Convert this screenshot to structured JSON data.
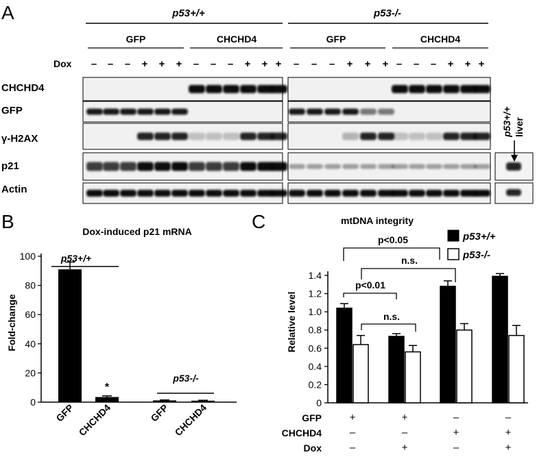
{
  "panelA": {
    "letter": "A",
    "groups": [
      {
        "genotype": "p53+/+",
        "conditions": [
          "GFP",
          "CHCHD4"
        ]
      },
      {
        "genotype": "p53-/-",
        "conditions": [
          "GFP",
          "CHCHD4"
        ]
      }
    ],
    "dox_label": "Dox",
    "dox_pattern": [
      "–",
      "–",
      "–",
      "+",
      "+",
      "+",
      "–",
      "–",
      "–",
      "+",
      "+",
      "+"
    ],
    "blot_labels": [
      "CHCHD4",
      "GFP",
      "γ-H2AX",
      "p21",
      "Actin"
    ],
    "liver_label": "p53+/+ liver",
    "liver_label_parts": [
      "p53+/+",
      "liver"
    ]
  },
  "panelB": {
    "letter": "B",
    "chart_data": {
      "type": "bar",
      "title": "Dox-induced p21 mRNA",
      "ylabel": "Fold-change",
      "ylim": [
        0,
        100
      ],
      "yticks": [
        0,
        20,
        40,
        60,
        80,
        100
      ],
      "categories": [
        "GFP",
        "CHCHD4",
        "GFP",
        "CHCHD4"
      ],
      "values": [
        91,
        3.5,
        1.2,
        1.0
      ],
      "errors": [
        5,
        0.8,
        0.3,
        0.3
      ],
      "groups": [
        {
          "label": "p53+/+",
          "categories": [
            0,
            1
          ]
        },
        {
          "label": "p53-/-",
          "categories": [
            2,
            3
          ]
        }
      ],
      "annotations": [
        {
          "text": "*",
          "category": 1
        }
      ],
      "grid": false
    }
  },
  "panelC": {
    "letter": "C",
    "chart_data": {
      "type": "bar",
      "title": "mtDNA integrity",
      "ylabel": "Relative level",
      "ylim": [
        0,
        1.4
      ],
      "yticks": [
        "0",
        "0.2",
        "0.4",
        "0.6",
        "0.8",
        "1.0",
        "1.2",
        "1.4"
      ],
      "categories": [
        "1",
        "2",
        "3",
        "4"
      ],
      "series": [
        {
          "name": "p53+/+",
          "color": "#000000",
          "values": [
            1.04,
            0.73,
            1.28,
            1.39
          ],
          "errors": [
            0.05,
            0.03,
            0.06,
            0.03
          ]
        },
        {
          "name": "p53-/-",
          "color": "#ffffff",
          "values": [
            0.64,
            0.56,
            0.8,
            0.74
          ],
          "errors": [
            0.1,
            0.07,
            0.07,
            0.11
          ]
        }
      ],
      "legend": "top-right",
      "factors": [
        {
          "label": "GFP",
          "values": [
            "+",
            "+",
            "–",
            "–"
          ]
        },
        {
          "label": "CHCHD4",
          "values": [
            "–",
            "–",
            "+",
            "+"
          ]
        },
        {
          "label": "Dox",
          "values": [
            "–",
            "+",
            "–",
            "+"
          ]
        }
      ],
      "comparisons": [
        {
          "text": "p<0.05",
          "from": "1",
          "to": "3"
        },
        {
          "text": "n.s.",
          "from": "1",
          "to": "3"
        },
        {
          "text": "p<0.01",
          "from": "1",
          "to": "2"
        },
        {
          "text": "n.s.",
          "from": "1",
          "to": "2"
        }
      ],
      "grid": false
    }
  }
}
